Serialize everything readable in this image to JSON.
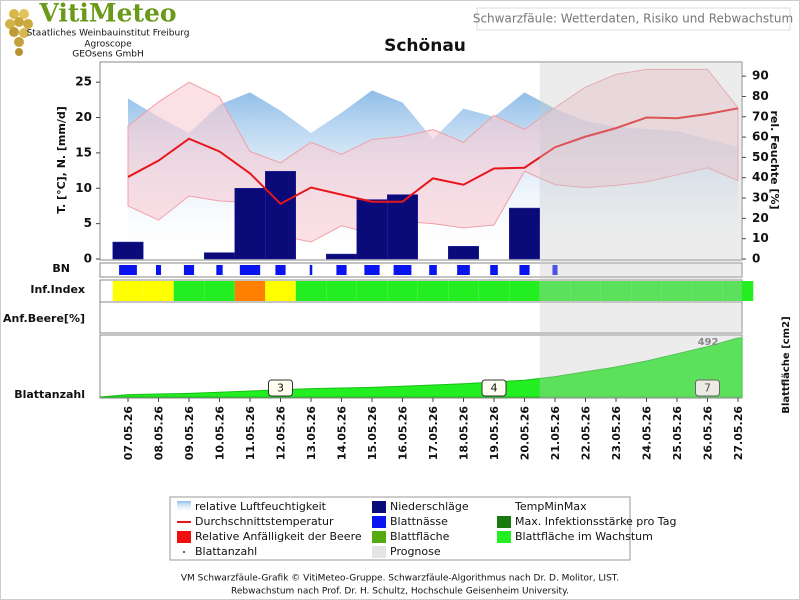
{
  "header": {
    "logo": "VitiMeteo",
    "institutions": [
      "Staatliches Weinbauinstitut Freiburg",
      "Agroscope",
      "GEOsens GmbH"
    ],
    "subtitle": "Schwarzfäule: Wetterdaten, Risiko und Rebwachstum"
  },
  "chart_data": {
    "type": "combo",
    "title": "Schönau",
    "categories": [
      "07.05.26",
      "08.05.26",
      "09.05.26",
      "10.05.26",
      "11.05.26",
      "12.05.26",
      "13.05.26",
      "14.05.26",
      "15.05.26",
      "16.05.26",
      "17.05.26",
      "18.05.26",
      "19.05.26",
      "20.05.26",
      "21.05.26",
      "22.05.26",
      "23.05.26",
      "24.05.26",
      "25.05.26",
      "26.05.26",
      "27.05.26"
    ],
    "forecast": [
      false,
      false,
      false,
      false,
      false,
      false,
      false,
      false,
      false,
      false,
      false,
      false,
      false,
      false,
      true,
      true,
      true,
      true,
      true,
      true,
      true
    ],
    "ylabel": "T. [°C], N. [mm/d]",
    "ylim": [
      0,
      27
    ],
    "yticks": [
      0,
      5,
      10,
      15,
      20,
      25
    ],
    "y2label": "rel. Feuchte [%]",
    "y2lim": [
      0,
      94
    ],
    "y2ticks": [
      0,
      10,
      20,
      30,
      40,
      50,
      60,
      70,
      80,
      90
    ],
    "humidity": {
      "name": "relative Luftfeuchtigkeit",
      "color": "#8fbde8",
      "axis": "y2",
      "values": [
        79,
        70,
        62,
        76,
        82,
        73,
        62,
        72,
        83,
        77,
        59,
        74,
        70,
        82,
        74,
        68,
        65,
        64,
        63,
        59,
        55
      ]
    },
    "precipitation": {
      "name": "Niederschläge",
      "color": "#0a0a78",
      "values": [
        2.4,
        0,
        0,
        0.9,
        10,
        12.4,
        0,
        0.7,
        8.4,
        9.1,
        0,
        1.8,
        0,
        7.2,
        0,
        0,
        0,
        0,
        0,
        0,
        0
      ]
    },
    "temp_minmax": {
      "name": "TempMinMax",
      "color": "#f8ccd4",
      "max": [
        18.8,
        22.2,
        25,
        22.9,
        15.2,
        13.6,
        16.5,
        14.8,
        16.9,
        17.3,
        18.3,
        16.5,
        20.3,
        18.3,
        21.4,
        24.3,
        26.1,
        26.8,
        26.8,
        26.8,
        21.4
      ],
      "min": [
        7.5,
        5.5,
        8.9,
        8.2,
        8,
        3.3,
        2.4,
        4.7,
        3.6,
        5.3,
        5,
        4.4,
        4.8,
        12.4,
        10.5,
        10.1,
        10.4,
        10.9,
        11.9,
        12.9,
        11.1
      ]
    },
    "temp_avg": {
      "name": "Durchschnittstemperatur",
      "color": "#e8161b",
      "values": [
        11.6,
        13.9,
        17,
        15.2,
        12.1,
        7.8,
        10.1,
        9.1,
        8.1,
        8.1,
        11.4,
        10.5,
        12.8,
        12.9,
        15.8,
        17.3,
        18.5,
        20,
        19.9,
        20.5,
        21.3
      ]
    },
    "leaf_wetness": {
      "name": "Blattnässe",
      "label": "BN",
      "color": "#0a14f0",
      "values": [
        14,
        4,
        8,
        5,
        16,
        8,
        2,
        8,
        12,
        14,
        6,
        10,
        6,
        8,
        4,
        0,
        0,
        0,
        0,
        0,
        0
      ]
    },
    "inf_index": {
      "label": "Inf.Index",
      "values": [
        1,
        1,
        0,
        0,
        2,
        1,
        0,
        0,
        0,
        0,
        0,
        0,
        0,
        0,
        0,
        0,
        0,
        0,
        0,
        0,
        0
      ],
      "colors": [
        "#22ee22",
        "#ffff00",
        "#ff7f00"
      ]
    },
    "berry_label": "Anf.Beere[%]",
    "leaf_area": {
      "name": "Blattfläche im Wachstum",
      "label": "Blattfläche [cm2]",
      "color": "#22ee22",
      "ylim": [
        0,
        500
      ],
      "values": [
        20,
        25,
        30,
        40,
        50,
        60,
        70,
        75,
        80,
        90,
        100,
        110,
        125,
        140,
        170,
        210,
        250,
        300,
        360,
        420,
        492
      ]
    },
    "leaf_count": {
      "name": "Blattanzahl",
      "values": [
        null,
        null,
        null,
        null,
        null,
        3,
        null,
        null,
        null,
        null,
        null,
        null,
        4,
        null,
        null,
        null,
        null,
        null,
        null,
        7,
        null
      ]
    },
    "legend_extra": [
      {
        "name": "Relative Anfälligkeit der Beere",
        "color": "#f01010"
      },
      {
        "name": "Max. Infektionsstärke pro Tag",
        "color": "#1a7a10"
      },
      {
        "name": "Blattfläche",
        "color": "#55aa10"
      },
      {
        "name": "Prognose",
        "color": "#e4e4e4"
      }
    ]
  },
  "footer": [
    "VM Schwarzfäule-Grafik © VitiMeteo-Gruppe. Schwarzfäule-Algorithmus nach Dr. D. Molitor, LIST.",
    "Rebwachstum nach Prof. Dr. H. Schultz, Hochschule Geisenheim University."
  ]
}
